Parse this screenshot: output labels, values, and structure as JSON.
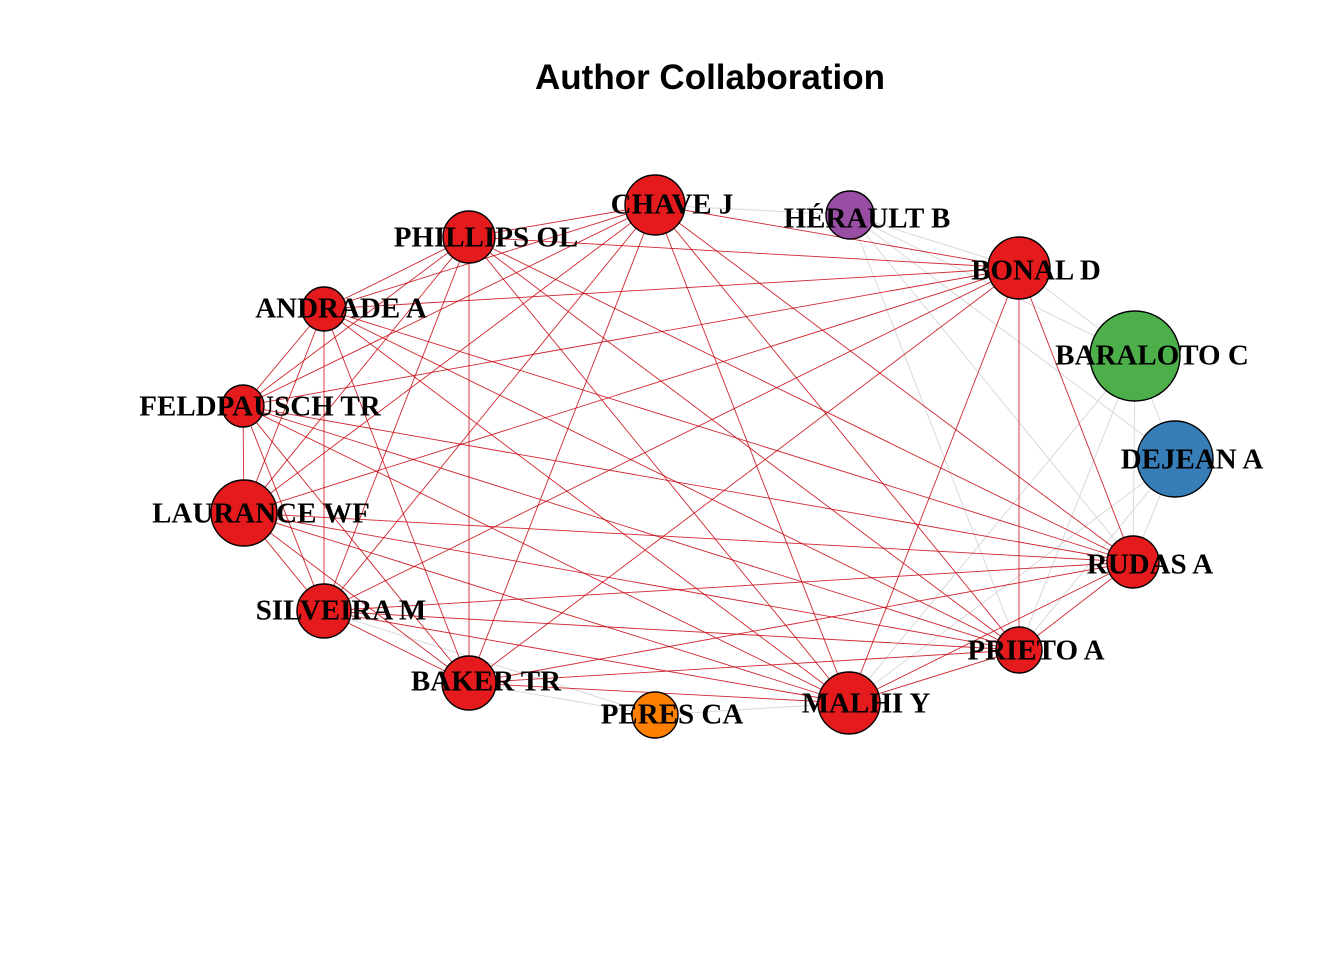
{
  "title": "Author Collaboration",
  "colors": {
    "red": "#e41a1c",
    "purple": "#984ea3",
    "green": "#4daf4a",
    "blue": "#377eb8",
    "orange": "#ff7f00",
    "edge_strong": "#c8000a",
    "edge_faint": "#d9d9d9"
  },
  "nodes": [
    {
      "id": "chave",
      "label": "CHAVE J",
      "cluster": "red"
    },
    {
      "id": "herault",
      "label": "HÉRAULT B",
      "cluster": "purple"
    },
    {
      "id": "phillips",
      "label": "PHILLIPS OL",
      "cluster": "red"
    },
    {
      "id": "bonal",
      "label": "BONAL D",
      "cluster": "red"
    },
    {
      "id": "andrade",
      "label": "ANDRADE A",
      "cluster": "red"
    },
    {
      "id": "baraloto",
      "label": "BARALOTO C",
      "cluster": "green"
    },
    {
      "id": "feldpausch",
      "label": "FELDPAUSCH TR",
      "cluster": "red"
    },
    {
      "id": "dejean",
      "label": "DEJEAN A",
      "cluster": "blue"
    },
    {
      "id": "laurance",
      "label": "LAURANCE WF",
      "cluster": "red"
    },
    {
      "id": "rudas",
      "label": "RUDAS A",
      "cluster": "red"
    },
    {
      "id": "silveira",
      "label": "SILVEIRA M",
      "cluster": "red"
    },
    {
      "id": "prieto",
      "label": "PRIETO A",
      "cluster": "red"
    },
    {
      "id": "baker",
      "label": "BAKER TR",
      "cluster": "red"
    },
    {
      "id": "malhi",
      "label": "MALHI Y",
      "cluster": "red"
    },
    {
      "id": "peres",
      "label": "PERES CA",
      "cluster": "orange"
    }
  ],
  "edges": [
    [
      "chave",
      "phillips"
    ],
    [
      "chave",
      "bonal"
    ],
    [
      "chave",
      "andrade"
    ],
    [
      "chave",
      "feldpausch"
    ],
    [
      "chave",
      "laurance"
    ],
    [
      "chave",
      "silveira"
    ],
    [
      "chave",
      "baker"
    ],
    [
      "chave",
      "malhi"
    ],
    [
      "chave",
      "prieto"
    ],
    [
      "chave",
      "rudas"
    ],
    [
      "phillips",
      "bonal"
    ],
    [
      "phillips",
      "andrade"
    ],
    [
      "phillips",
      "feldpausch"
    ],
    [
      "phillips",
      "laurance"
    ],
    [
      "phillips",
      "silveira"
    ],
    [
      "phillips",
      "baker"
    ],
    [
      "phillips",
      "malhi"
    ],
    [
      "phillips",
      "prieto"
    ],
    [
      "phillips",
      "rudas"
    ],
    [
      "bonal",
      "andrade"
    ],
    [
      "bonal",
      "feldpausch"
    ],
    [
      "bonal",
      "laurance"
    ],
    [
      "bonal",
      "silveira"
    ],
    [
      "bonal",
      "baker"
    ],
    [
      "bonal",
      "malhi"
    ],
    [
      "bonal",
      "prieto"
    ],
    [
      "bonal",
      "rudas"
    ],
    [
      "andrade",
      "feldpausch"
    ],
    [
      "andrade",
      "laurance"
    ],
    [
      "andrade",
      "silveira"
    ],
    [
      "andrade",
      "baker"
    ],
    [
      "andrade",
      "malhi"
    ],
    [
      "andrade",
      "prieto"
    ],
    [
      "andrade",
      "rudas"
    ],
    [
      "feldpausch",
      "laurance"
    ],
    [
      "feldpausch",
      "silveira"
    ],
    [
      "feldpausch",
      "baker"
    ],
    [
      "feldpausch",
      "malhi"
    ],
    [
      "feldpausch",
      "prieto"
    ],
    [
      "feldpausch",
      "rudas"
    ],
    [
      "laurance",
      "silveira"
    ],
    [
      "laurance",
      "baker"
    ],
    [
      "laurance",
      "malhi"
    ],
    [
      "laurance",
      "prieto"
    ],
    [
      "laurance",
      "rudas"
    ],
    [
      "silveira",
      "baker"
    ],
    [
      "silveira",
      "malhi"
    ],
    [
      "silveira",
      "prieto"
    ],
    [
      "silveira",
      "rudas"
    ],
    [
      "baker",
      "malhi"
    ],
    [
      "baker",
      "prieto"
    ],
    [
      "baker",
      "rudas"
    ],
    [
      "malhi",
      "prieto"
    ],
    [
      "malhi",
      "rudas"
    ],
    [
      "prieto",
      "rudas"
    ]
  ],
  "faint_edges": [
    [
      "herault",
      "baraloto"
    ],
    [
      "herault",
      "dejean"
    ],
    [
      "herault",
      "chave"
    ],
    [
      "herault",
      "bonal"
    ],
    [
      "baraloto",
      "dejean"
    ],
    [
      "baraloto",
      "rudas"
    ],
    [
      "baraloto",
      "prieto"
    ],
    [
      "baraloto",
      "malhi"
    ],
    [
      "dejean",
      "rudas"
    ],
    [
      "dejean",
      "prieto"
    ],
    [
      "peres",
      "malhi"
    ],
    [
      "peres",
      "baker"
    ],
    [
      "peres",
      "silveira"
    ],
    [
      "herault",
      "rudas"
    ],
    [
      "baraloto",
      "bonal"
    ],
    [
      "dejean",
      "malhi"
    ],
    [
      "herault",
      "prieto"
    ]
  ]
}
